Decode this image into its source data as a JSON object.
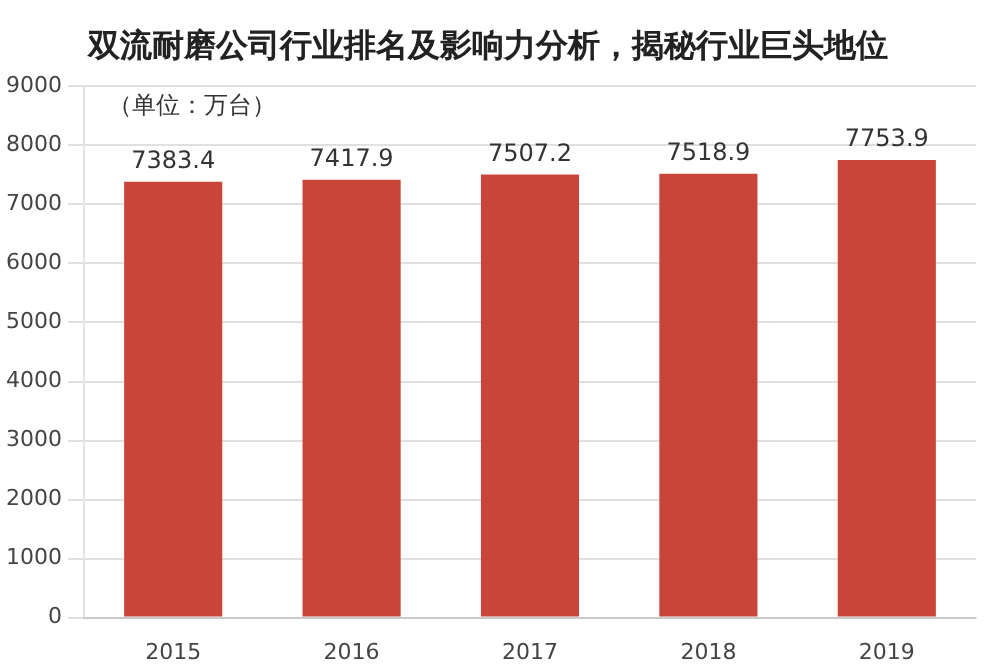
{
  "chart_data": {
    "type": "bar",
    "title": "双流耐磨公司行业排名及影响力分析，揭秘行业巨头地位",
    "annotations": [
      "（单位：万台）"
    ],
    "categories": [
      "2015",
      "2016",
      "2017",
      "2018",
      "2019"
    ],
    "values": [
      7383.4,
      7417.9,
      7507.2,
      7518.9,
      7753.9
    ],
    "color": "#c9453a",
    "data_labels": true,
    "ylim": [
      0,
      9000
    ],
    "yticks": [
      0,
      1000,
      2000,
      3000,
      4000,
      5000,
      6000,
      7000,
      8000,
      9000
    ],
    "grid": "y",
    "legend": false
  }
}
